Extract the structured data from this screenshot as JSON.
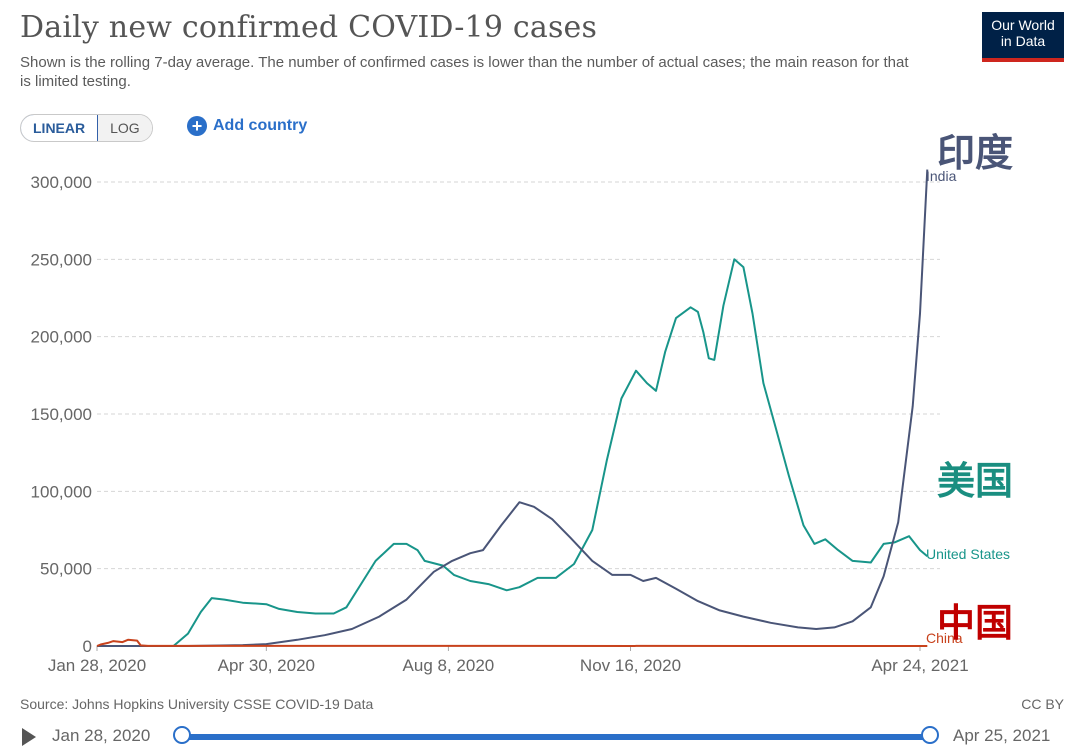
{
  "header": {
    "title": "Daily new confirmed COVID-19 cases",
    "subtitle": "Shown is the rolling 7-day average. The number of confirmed cases is lower than the number of actual cases; the main reason for that is limited testing.",
    "logo_line1": "Our World",
    "logo_line2": "in Data"
  },
  "controls": {
    "linear_label": "LINEAR",
    "log_label": "LOG",
    "add_country_label": "Add country",
    "add_icon": "plus-circle-icon"
  },
  "annotations": {
    "india": "印度",
    "usa": "美国",
    "china": "中国"
  },
  "footer": {
    "source": "Source: Johns Hopkins University CSSE COVID-19 Data",
    "license": "CC BY"
  },
  "timeline": {
    "start": "Jan 28, 2020",
    "end": "Apr 25, 2021",
    "play_icon": "play-icon"
  },
  "colors": {
    "india": "#4a5577",
    "usa": "#18958a",
    "china": "#c8421c",
    "annot_india": "#4a5577",
    "annot_usa": "#1a8e80",
    "annot_china": "#c00000"
  },
  "chart_data": {
    "type": "line",
    "title": "Daily new confirmed COVID-19 cases",
    "ylim": [
      0,
      300000
    ],
    "y_ticks": [
      "0",
      "50,000",
      "100,000",
      "150,000",
      "200,000",
      "250,000",
      "300,000"
    ],
    "y_tick_values": [
      0,
      50000,
      100000,
      150000,
      200000,
      250000,
      300000
    ],
    "x_ticks": [
      "Jan 28, 2020",
      "Apr 30, 2020",
      "Aug 8, 2020",
      "Nov 16, 2020",
      "Apr 24, 2021"
    ],
    "x_tick_days": [
      0,
      93,
      193,
      293,
      452
    ],
    "xlim_days": [
      0,
      452
    ],
    "grid": true,
    "series": [
      {
        "name": "United States",
        "points": [
          [
            0,
            0
          ],
          [
            42,
            0
          ],
          [
            50,
            8000
          ],
          [
            57,
            22000
          ],
          [
            63,
            31000
          ],
          [
            70,
            30000
          ],
          [
            80,
            28000
          ],
          [
            93,
            27000
          ],
          [
            100,
            24000
          ],
          [
            110,
            22000
          ],
          [
            120,
            21000
          ],
          [
            130,
            21000
          ],
          [
            137,
            25000
          ],
          [
            145,
            40000
          ],
          [
            153,
            55000
          ],
          [
            163,
            66000
          ],
          [
            170,
            66000
          ],
          [
            176,
            62000
          ],
          [
            180,
            55000
          ],
          [
            190,
            52000
          ],
          [
            196,
            46000
          ],
          [
            205,
            42000
          ],
          [
            215,
            40000
          ],
          [
            225,
            36000
          ],
          [
            232,
            38000
          ],
          [
            242,
            44000
          ],
          [
            252,
            44000
          ],
          [
            262,
            53000
          ],
          [
            272,
            75000
          ],
          [
            280,
            120000
          ],
          [
            288,
            160000
          ],
          [
            296,
            178000
          ],
          [
            302,
            170000
          ],
          [
            307,
            165000
          ],
          [
            312,
            190000
          ],
          [
            318,
            212000
          ],
          [
            326,
            219000
          ],
          [
            330,
            216000
          ],
          [
            333,
            203000
          ],
          [
            336,
            186000
          ],
          [
            339,
            185000
          ],
          [
            344,
            220000
          ],
          [
            350,
            250000
          ],
          [
            355,
            245000
          ],
          [
            360,
            215000
          ],
          [
            366,
            170000
          ],
          [
            373,
            140000
          ],
          [
            380,
            110000
          ],
          [
            388,
            78000
          ],
          [
            394,
            66000
          ],
          [
            400,
            69000
          ],
          [
            407,
            62000
          ],
          [
            415,
            55000
          ],
          [
            425,
            54000
          ],
          [
            432,
            66000
          ],
          [
            438,
            67000
          ],
          [
            446,
            71000
          ],
          [
            452,
            62000
          ],
          [
            456,
            58000
          ]
        ]
      },
      {
        "name": "India",
        "points": [
          [
            0,
            0
          ],
          [
            50,
            0
          ],
          [
            80,
            600
          ],
          [
            93,
            1200
          ],
          [
            110,
            4000
          ],
          [
            125,
            7000
          ],
          [
            140,
            11000
          ],
          [
            155,
            19000
          ],
          [
            170,
            30000
          ],
          [
            185,
            48000
          ],
          [
            195,
            55000
          ],
          [
            205,
            60000
          ],
          [
            212,
            62000
          ],
          [
            222,
            78000
          ],
          [
            232,
            93000
          ],
          [
            240,
            90000
          ],
          [
            250,
            82000
          ],
          [
            260,
            70000
          ],
          [
            272,
            55000
          ],
          [
            283,
            46000
          ],
          [
            293,
            46000
          ],
          [
            300,
            42000
          ],
          [
            307,
            44000
          ],
          [
            318,
            37000
          ],
          [
            330,
            29000
          ],
          [
            342,
            23000
          ],
          [
            355,
            19000
          ],
          [
            370,
            15000
          ],
          [
            385,
            12000
          ],
          [
            395,
            11000
          ],
          [
            405,
            12000
          ],
          [
            415,
            16000
          ],
          [
            425,
            25000
          ],
          [
            432,
            45000
          ],
          [
            440,
            80000
          ],
          [
            448,
            155000
          ],
          [
            452,
            215000
          ],
          [
            456,
            308000
          ]
        ]
      },
      {
        "name": "China",
        "points": [
          [
            0,
            0
          ],
          [
            2,
            1000
          ],
          [
            6,
            2000
          ],
          [
            9,
            3200
          ],
          [
            14,
            2500
          ],
          [
            17,
            4000
          ],
          [
            22,
            3500
          ],
          [
            24,
            400
          ],
          [
            28,
            80
          ],
          [
            60,
            60
          ],
          [
            200,
            40
          ],
          [
            456,
            20
          ]
        ]
      }
    ]
  }
}
